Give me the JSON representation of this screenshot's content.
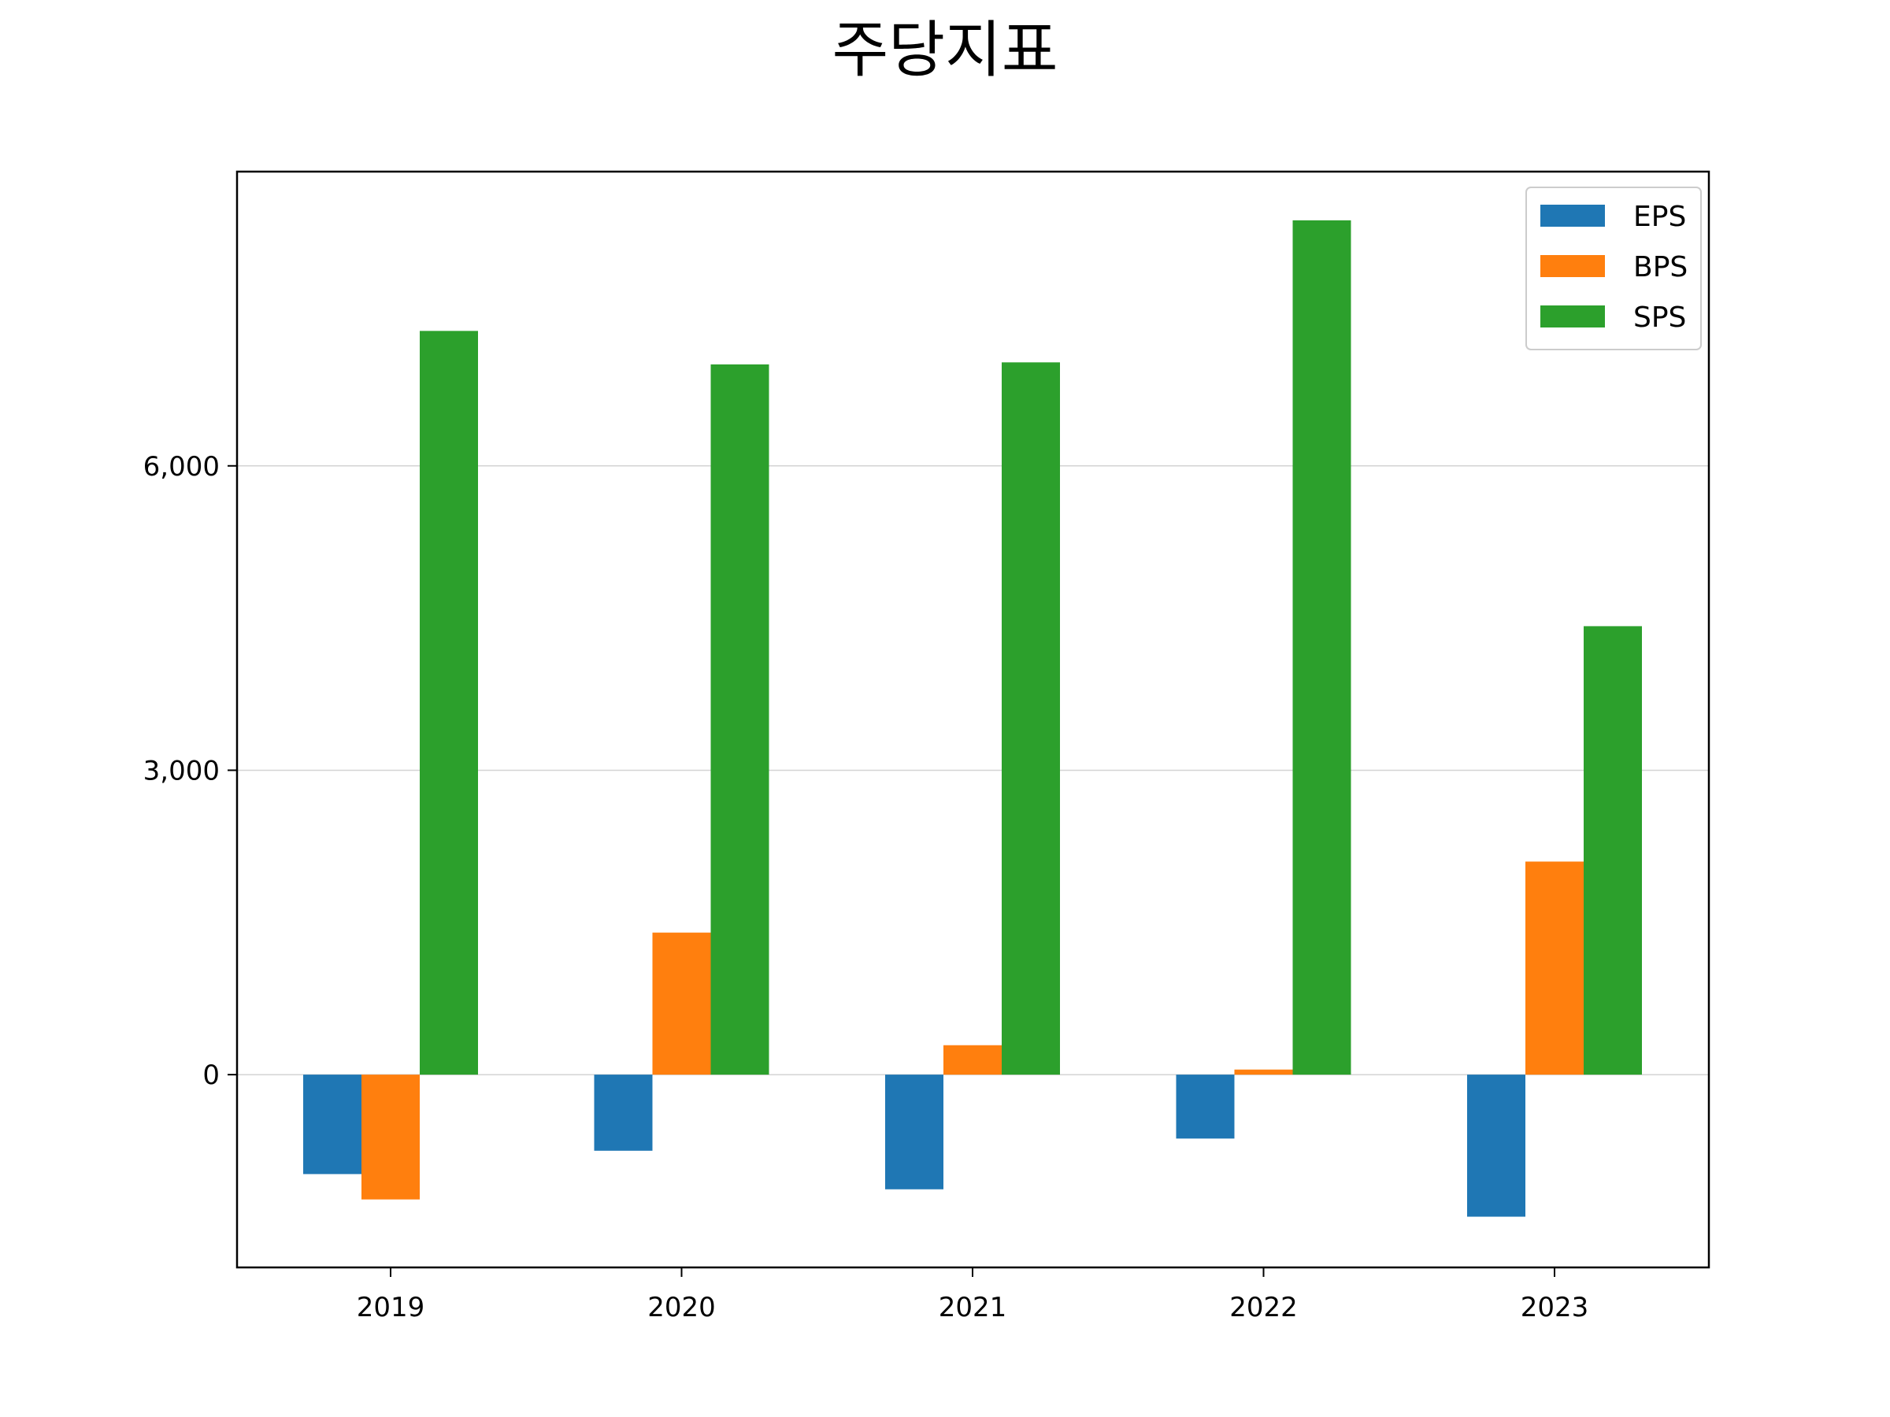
{
  "chart_data": {
    "type": "bar",
    "title": "주당지표",
    "xlabel": "",
    "ylabel": "",
    "categories": [
      "2019",
      "2020",
      "2021",
      "2022",
      "2023"
    ],
    "series": [
      {
        "name": "EPS",
        "color": "#1f77b4",
        "values": [
          -980,
          -750,
          -1130,
          -630,
          -1400
        ]
      },
      {
        "name": "BPS",
        "color": "#ff7f0e",
        "values": [
          -1230,
          1400,
          290,
          50,
          2100
        ]
      },
      {
        "name": "SPS",
        "color": "#2ca02c",
        "values": [
          7330,
          7000,
          7020,
          8420,
          4420
        ]
      }
    ],
    "ylim": [
      -1900,
      8900
    ],
    "yticks": [
      0,
      3000,
      6000
    ],
    "ytick_labels": [
      "0",
      "3,000",
      "6,000"
    ],
    "grid": "y",
    "legend_position": "top-right"
  }
}
